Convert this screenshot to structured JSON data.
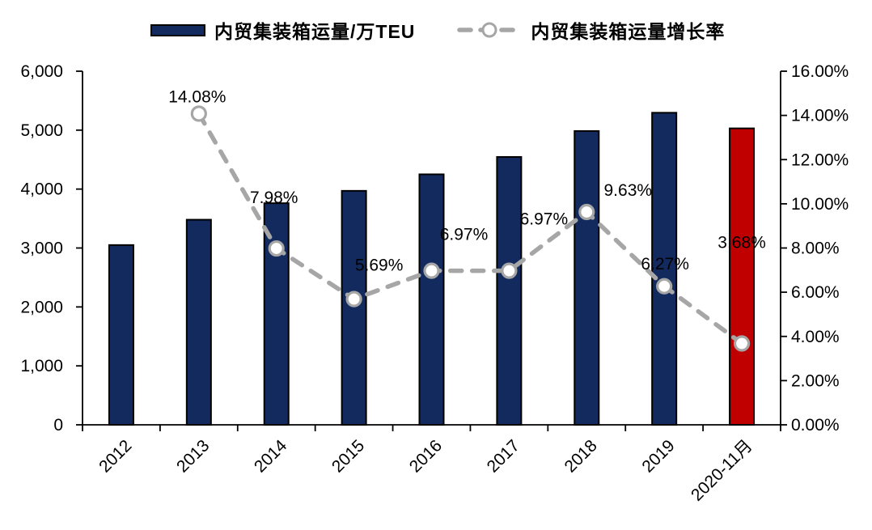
{
  "page": {
    "background": "#ffffff"
  },
  "chart_data": {
    "type": "combo-bar-line",
    "title": "",
    "categories": [
      "2012",
      "2013",
      "2014",
      "2015",
      "2016",
      "2017",
      "2018",
      "2019",
      "2020-11月"
    ],
    "series": [
      {
        "name": "内贸集装箱运量/万TEU",
        "type": "bar",
        "axis": "left",
        "values": [
          3050,
          3480,
          3760,
          3970,
          4250,
          4545,
          4985,
          5295,
          5030
        ],
        "color": "#132a5e",
        "outline_color": "#000000",
        "highlight_last_color": "#c00000"
      },
      {
        "name": "内贸集装箱运量增长率",
        "type": "line",
        "axis": "right",
        "values": [
          null,
          14.08,
          7.98,
          5.69,
          6.97,
          6.97,
          9.63,
          6.27,
          3.68
        ],
        "point_labels": [
          "",
          "14.08%",
          "7.98%",
          "5.69%",
          "6.97%",
          "6.97%",
          "9.63%",
          "6.27%",
          "3.68%"
        ],
        "color": "#a6a6a6",
        "marker_fill": "#ffffff",
        "dashed": true
      }
    ],
    "left_axis": {
      "min": 0,
      "max": 6000,
      "step": 1000,
      "tick_labels": [
        "0",
        "1,000",
        "2,000",
        "3,000",
        "4,000",
        "5,000",
        "6,000"
      ]
    },
    "right_axis": {
      "min": 0,
      "max": 16,
      "step": 2,
      "tick_labels": [
        "0.00%",
        "2.00%",
        "4.00%",
        "6.00%",
        "8.00%",
        "10.00%",
        "12.00%",
        "14.00%",
        "16.00%"
      ]
    },
    "legend_position": "top",
    "gridlines": false,
    "label_color": "#000000"
  }
}
